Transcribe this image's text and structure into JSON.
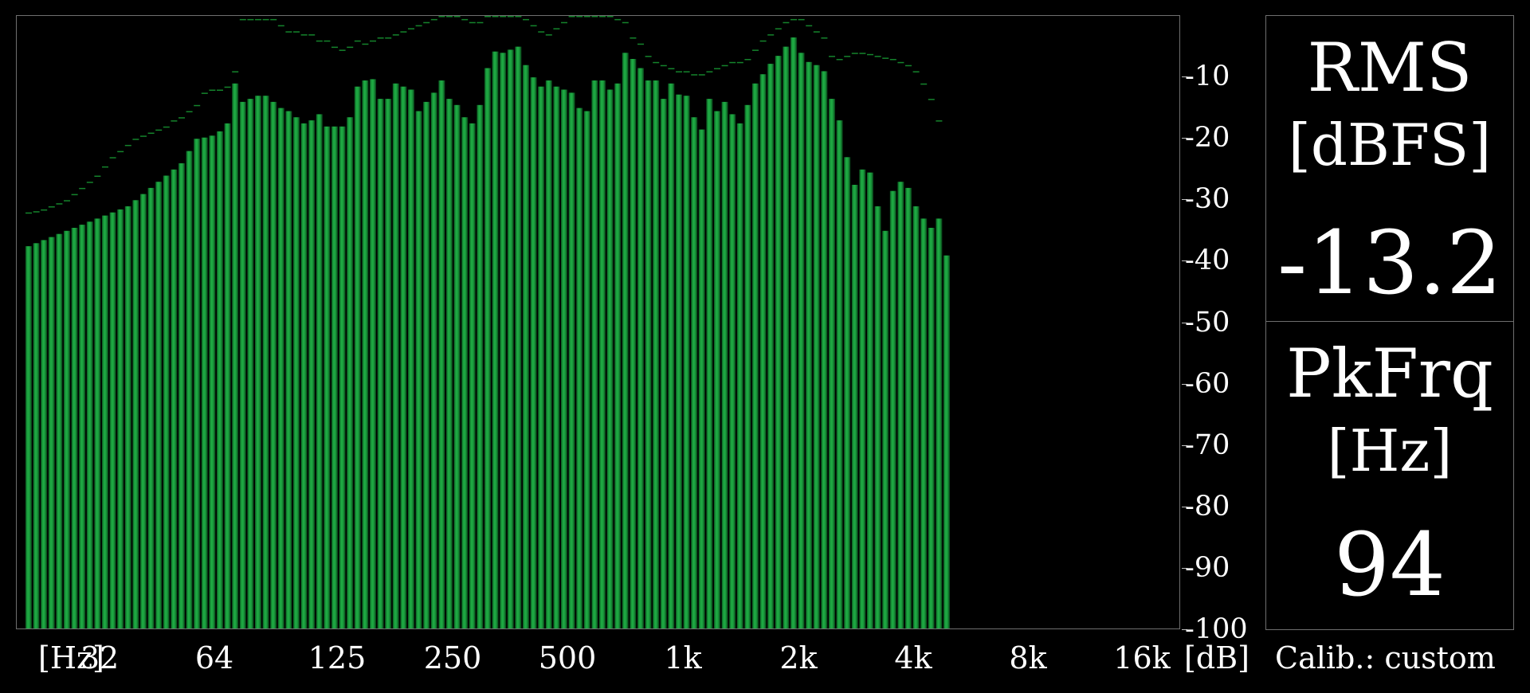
{
  "meter": {
    "rms_title": "RMS",
    "rms_unit": "[dBFS]",
    "rms_value": "-13.2",
    "pkfrq_title": "PkFrq",
    "pkfrq_unit": "[Hz]",
    "pkfrq_value": "94",
    "calib": "Calib.: custom"
  },
  "chart_data": {
    "type": "bar",
    "x_unit_label": "[Hz]",
    "y_unit_label": "[dB]",
    "x_ticks": [
      "32",
      "64",
      "125",
      "250",
      "500",
      "1k",
      "2k",
      "4k",
      "8k",
      "16k"
    ],
    "y_ticks": [
      -10,
      -20,
      -30,
      -40,
      -50,
      -60,
      -70,
      -80,
      -90,
      -100
    ],
    "ylim": [
      -100,
      0
    ],
    "x_scale": "log, 1/12-octave bands from 32 Hz to 16k Hz",
    "grid": false,
    "bar_color": "#1f9e3a",
    "peak_hold_color": "#19a537",
    "series": [
      {
        "values": [
          -37.5,
          -37.0,
          -36.5,
          -36.0,
          -35.5,
          -35.0,
          -34.5,
          -34.0,
          -33.5,
          -33.0,
          -32.5,
          -32.0,
          -31.5,
          -31.0,
          -30.0,
          -29.0,
          -28.0,
          -27.0,
          -26.0,
          -25.0,
          -24.0,
          -22.0,
          -20.0,
          -19.8,
          -19.5,
          -18.8,
          -17.5,
          -11.0,
          -14.0,
          -13.5,
          -13.0,
          -13.0,
          -14.0,
          -15.0,
          -15.5,
          -16.5,
          -17.5,
          -17.0,
          -16.0,
          -18.0,
          -18.0,
          -18.0,
          -16.5,
          -11.5,
          -10.5,
          -10.3,
          -13.5,
          -13.5,
          -11.0,
          -11.5,
          -12.0,
          -15.5,
          -14.0,
          -12.5,
          -10.5,
          -13.5,
          -14.5,
          -16.5,
          -17.5,
          -14.5,
          -8.5,
          -5.8,
          -6.0,
          -5.5,
          -5.0,
          -8.0,
          -10.0,
          -11.5,
          -10.5,
          -11.5,
          -12.0,
          -12.5,
          -15.0,
          -15.5,
          -10.5,
          -10.5,
          -12.0,
          -11.0,
          -6.0,
          -7.0,
          -8.5,
          -10.5,
          -10.5,
          -13.5,
          -11.0,
          -12.8,
          -13.0,
          -16.5,
          -18.5,
          -13.5,
          -15.5,
          -14.0,
          -16.0,
          -17.5,
          -14.5,
          -11.0,
          -9.5,
          -7.8,
          -6.5,
          -5.0,
          -3.5,
          -6.0,
          -7.5,
          -8.0,
          -9.0,
          -13.5,
          -17.0,
          -23.0,
          -27.5,
          -25.0,
          -25.5,
          -31.0,
          -35.0,
          -28.5,
          -27.0,
          -28.0,
          -31.0,
          -33.0,
          -34.5,
          -33.0,
          -39.0
        ]
      },
      {
        "values": [
          -32.0,
          -31.8,
          -31.5,
          -31.0,
          -30.5,
          -30.0,
          -29.0,
          -28.0,
          -27.0,
          -26.0,
          -24.5,
          -23.0,
          -22.0,
          -21.0,
          -20.0,
          -19.5,
          -19.0,
          -18.5,
          -18.0,
          -17.0,
          -16.5,
          -15.5,
          -14.5,
          -12.5,
          -12.0,
          -12.0,
          -11.5,
          -9.0,
          -0.5,
          -0.5,
          -0.5,
          -0.5,
          -0.5,
          -1.5,
          -2.5,
          -2.5,
          -3.0,
          -3.0,
          -4.0,
          -4.0,
          -5.0,
          -5.5,
          -5.0,
          -4.0,
          -4.5,
          -4.0,
          -3.5,
          -3.5,
          -3.0,
          -2.5,
          -2.0,
          -1.5,
          -1.0,
          -0.5,
          0.0,
          0.0,
          0.0,
          -0.5,
          -1.0,
          -1.0,
          0.0,
          0.0,
          0.0,
          0.0,
          0.0,
          -0.5,
          -1.5,
          -2.5,
          -3.0,
          -2.0,
          -1.0,
          0.0,
          0.0,
          0.0,
          0.0,
          0.0,
          0.0,
          -0.5,
          -1.0,
          -3.5,
          -4.5,
          -6.5,
          -7.5,
          -8.0,
          -8.5,
          -9.0,
          -9.0,
          -9.5,
          -9.5,
          -9.0,
          -8.5,
          -8.0,
          -7.5,
          -7.5,
          -7.0,
          -5.5,
          -4.0,
          -3.0,
          -2.0,
          -1.0,
          -0.5,
          -0.5,
          -1.5,
          -2.5,
          -3.5,
          -6.5,
          -7.0,
          -6.5,
          -6.0,
          -6.0,
          -6.2,
          -6.5,
          -6.8,
          -7.0,
          -7.5,
          -8.0,
          -9.0,
          -11.0,
          -13.5,
          -17.0
        ]
      }
    ]
  },
  "colors": {
    "background": "#000000",
    "frame": "#6f6f6f",
    "text": "#ffffff"
  }
}
